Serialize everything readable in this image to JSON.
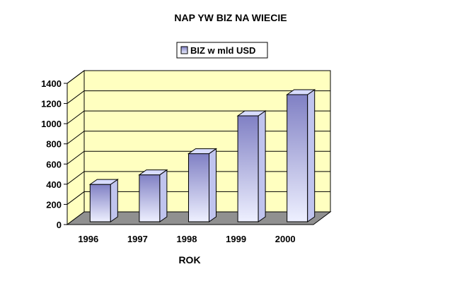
{
  "chart_data": {
    "type": "bar",
    "title": "NAP   YW BIZ NA    WIECIE",
    "xlabel": "ROK",
    "ylabel": "",
    "categories": [
      "1996",
      "1997",
      "1998",
      "1999",
      "2000"
    ],
    "series": [
      {
        "name": "BIZ w mld USD",
        "values": [
          370,
          465,
          675,
          1050,
          1260
        ]
      }
    ],
    "ylim": [
      0,
      1400
    ],
    "yticks": [
      "0",
      "200",
      "400",
      "600",
      "800",
      "1000",
      "1200",
      "1400"
    ],
    "grid": true,
    "legend_position": "top-center",
    "colors": {
      "wall": "#ffffc0",
      "floor": "#909090",
      "bar_top": "#8888c8",
      "bar_bottom": "#e8ecff",
      "bar_side": "#c0c4ee",
      "bar_cap": "#d8dcff"
    }
  }
}
